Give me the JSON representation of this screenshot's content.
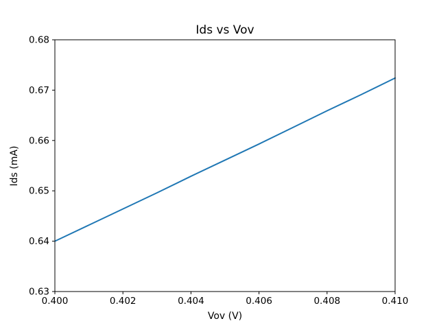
{
  "chart_data": {
    "type": "line",
    "title": "Ids vs Vov",
    "xlabel": "Vov (V)",
    "ylabel": "Ids (mA)",
    "xlim": [
      0.4,
      0.41
    ],
    "ylim": [
      0.63,
      0.68
    ],
    "x_ticks": [
      "0.400",
      "0.402",
      "0.404",
      "0.406",
      "0.408",
      "0.410"
    ],
    "y_ticks": [
      "0.63",
      "0.64",
      "0.65",
      "0.66",
      "0.67",
      "0.68"
    ],
    "grid": false,
    "legend_position": "none",
    "background_color": "#ffffff",
    "axis_color": "#000000",
    "series": [
      {
        "name": "Ids",
        "color": "#1f77b4",
        "x": [
          0.4,
          0.401,
          0.402,
          0.403,
          0.404,
          0.405,
          0.406,
          0.407,
          0.408,
          0.409,
          0.41
        ],
        "y": [
          0.64,
          0.6432,
          0.6464,
          0.6496,
          0.6529,
          0.6561,
          0.6593,
          0.6626,
          0.6659,
          0.6691,
          0.6724
        ]
      }
    ]
  }
}
